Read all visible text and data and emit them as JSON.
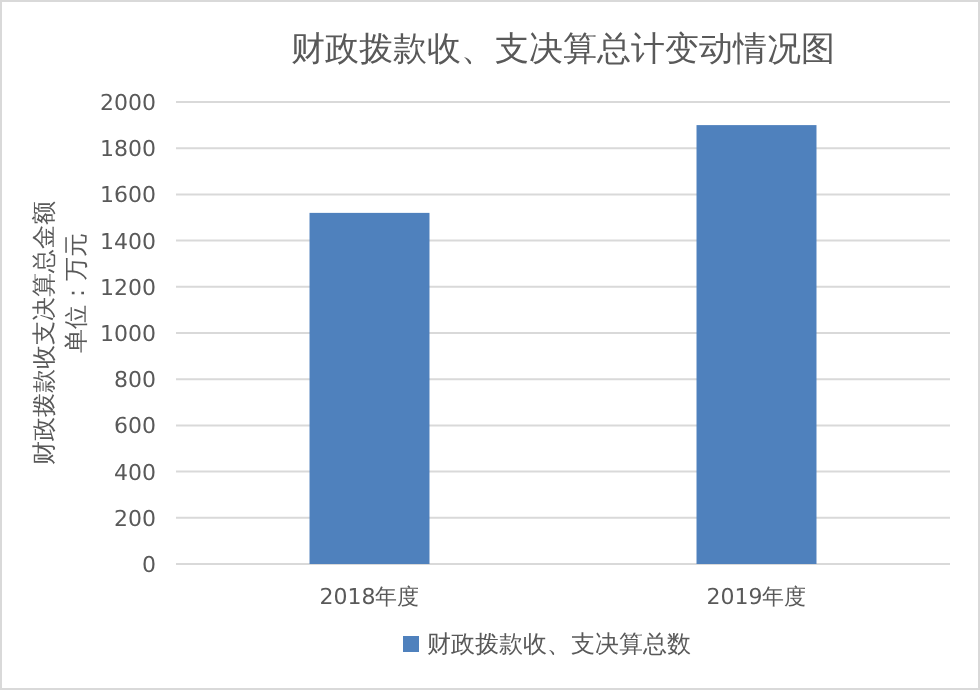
{
  "chart_data": {
    "type": "bar",
    "title": "财政拨款收、支决算总计变动情况图",
    "ylabel": "财政拨款收支决算总金额",
    "annotations": [
      "单位：万元"
    ],
    "categories": [
      "2018年度",
      "2019年度"
    ],
    "series": [
      {
        "name": "财政拨款收、支决算总数",
        "color": "#4f81bd",
        "values": [
          1520,
          1900
        ]
      }
    ],
    "ylim": [
      0,
      2000
    ],
    "yticks": [
      0,
      200,
      400,
      600,
      800,
      1000,
      1200,
      1400,
      1600,
      1800,
      2000
    ],
    "grid": "y",
    "legend": "bottom"
  }
}
